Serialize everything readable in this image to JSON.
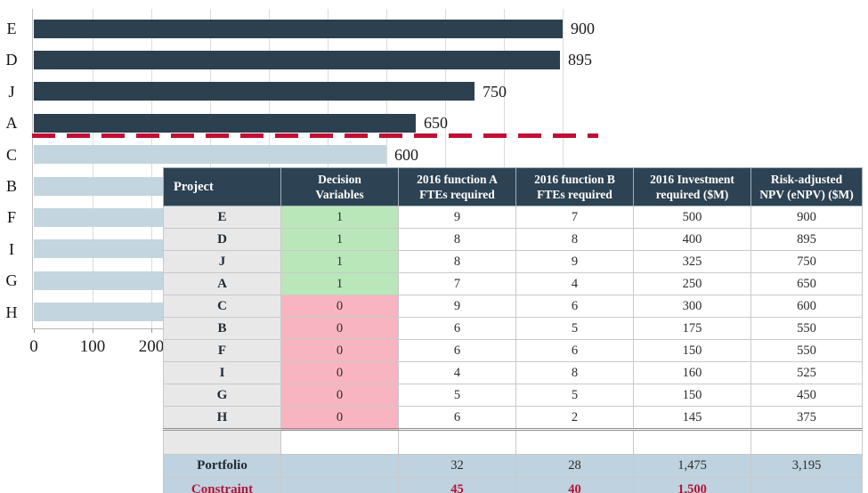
{
  "chart": {
    "bars": [
      {
        "label": "E",
        "value": 900,
        "value_label": "900",
        "group": "selected"
      },
      {
        "label": "D",
        "value": 895,
        "value_label": "895",
        "group": "selected"
      },
      {
        "label": "J",
        "value": 750,
        "value_label": "750",
        "group": "selected"
      },
      {
        "label": "A",
        "value": 650,
        "value_label": "650",
        "group": "selected"
      },
      {
        "label": "C",
        "value": 600,
        "value_label": "600",
        "group": "unselected"
      },
      {
        "label": "B",
        "value": 550,
        "value_label": "",
        "group": "unselected"
      },
      {
        "label": "F",
        "value": 550,
        "value_label": "",
        "group": "unselected"
      },
      {
        "label": "I",
        "value": 525,
        "value_label": "",
        "group": "unselected"
      },
      {
        "label": "G",
        "value": 450,
        "value_label": "",
        "group": "unselected"
      },
      {
        "label": "H",
        "value": 375,
        "value_label": "",
        "group": "unselected"
      }
    ],
    "x_ticks": [
      "0",
      "100",
      "200"
    ],
    "colors": {
      "selected_bar": "#2c4050",
      "unselected_bar": "#c3d5df",
      "cutoff_line": "#c00f35",
      "gridline": "#dbdbdb"
    }
  },
  "table": {
    "headers": [
      "Project",
      "Decision\nVariables",
      "2016 function A\nFTEs required",
      "2016 function B\nFTEs required",
      "2016 Investment\nrequired ($M)",
      "Risk-adjusted\nNPV (eNPV) ($M)"
    ],
    "rows": [
      {
        "project": "E",
        "decision": "1",
        "fte_a": "9",
        "fte_b": "7",
        "investment": "500",
        "npv": "900"
      },
      {
        "project": "D",
        "decision": "1",
        "fte_a": "8",
        "fte_b": "8",
        "investment": "400",
        "npv": "895"
      },
      {
        "project": "J",
        "decision": "1",
        "fte_a": "8",
        "fte_b": "9",
        "investment": "325",
        "npv": "750"
      },
      {
        "project": "A",
        "decision": "1",
        "fte_a": "7",
        "fte_b": "4",
        "investment": "250",
        "npv": "650"
      },
      {
        "project": "C",
        "decision": "0",
        "fte_a": "9",
        "fte_b": "6",
        "investment": "300",
        "npv": "600"
      },
      {
        "project": "B",
        "decision": "0",
        "fte_a": "6",
        "fte_b": "5",
        "investment": "175",
        "npv": "550"
      },
      {
        "project": "F",
        "decision": "0",
        "fte_a": "6",
        "fte_b": "6",
        "investment": "150",
        "npv": "550"
      },
      {
        "project": "I",
        "decision": "0",
        "fte_a": "4",
        "fte_b": "8",
        "investment": "160",
        "npv": "525"
      },
      {
        "project": "G",
        "decision": "0",
        "fte_a": "5",
        "fte_b": "5",
        "investment": "150",
        "npv": "450"
      },
      {
        "project": "H",
        "decision": "0",
        "fte_a": "6",
        "fte_b": "2",
        "investment": "145",
        "npv": "375"
      }
    ],
    "portfolio_row": {
      "label": "Portfolio",
      "decision": "",
      "fte_a": "32",
      "fte_b": "28",
      "investment": "1,475",
      "npv": "3,195"
    },
    "constraint_row": {
      "label": "Constraint",
      "decision": "",
      "fte_a": "45",
      "fte_b": "40",
      "investment": "1,500",
      "npv": ""
    },
    "colors": {
      "header_bg": "#2d4253",
      "project_cell_bg": "#e8e8e8",
      "decision_yes_bg": "#b9e7ba",
      "decision_no_bg": "#f8b4c0",
      "summary_row_bg": "#bed3df",
      "constraint_text": "#b51437"
    }
  },
  "chart_data": {
    "type": "bar",
    "orientation": "horizontal",
    "categories": [
      "E",
      "D",
      "J",
      "A",
      "C",
      "B",
      "F",
      "I",
      "G",
      "H"
    ],
    "values": [
      900,
      895,
      750,
      650,
      600,
      550,
      550,
      525,
      450,
      375
    ],
    "series_note": "values are Risk-adjusted NPV (eNPV) ($M); bars sorted descending",
    "data_labels_visible": [
      "900",
      "895",
      "750",
      "650",
      "600"
    ],
    "title": "",
    "xlabel": "",
    "ylabel": "",
    "xlim": [
      0,
      1000
    ],
    "x_tick_labels_visible": [
      0,
      100,
      200
    ],
    "gridlines": "vertical, every 100 units",
    "legend": "none",
    "bar_groups": {
      "selected_dark": [
        "E",
        "D",
        "J",
        "A"
      ],
      "unselected_light": [
        "C",
        "B",
        "F",
        "I",
        "G",
        "H"
      ]
    },
    "annotations": [
      {
        "type": "dashed_horizontal_cutoff_line",
        "color": "#c00f35",
        "position": "between bars A and C"
      }
    ]
  }
}
